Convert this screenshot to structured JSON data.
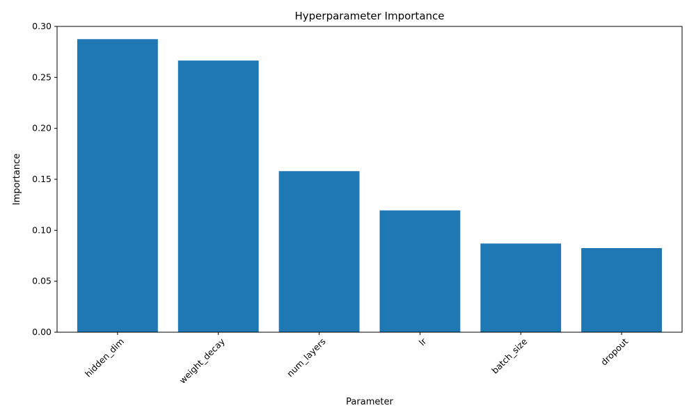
{
  "chart_data": {
    "type": "bar",
    "title": "Hyperparameter Importance",
    "xlabel": "Parameter",
    "ylabel": "Importance",
    "categories": [
      "hidden_dim",
      "weight_decay",
      "num_layers",
      "lr",
      "batch_size",
      "dropout"
    ],
    "values": [
      0.2875,
      0.2665,
      0.158,
      0.1195,
      0.087,
      0.0825
    ],
    "ylim": [
      0,
      0.3
    ],
    "yticks": [
      "0.00",
      "0.05",
      "0.10",
      "0.15",
      "0.20",
      "0.25",
      "0.30"
    ],
    "bar_color": "#1f77b4",
    "grid": false,
    "legend": "none"
  }
}
